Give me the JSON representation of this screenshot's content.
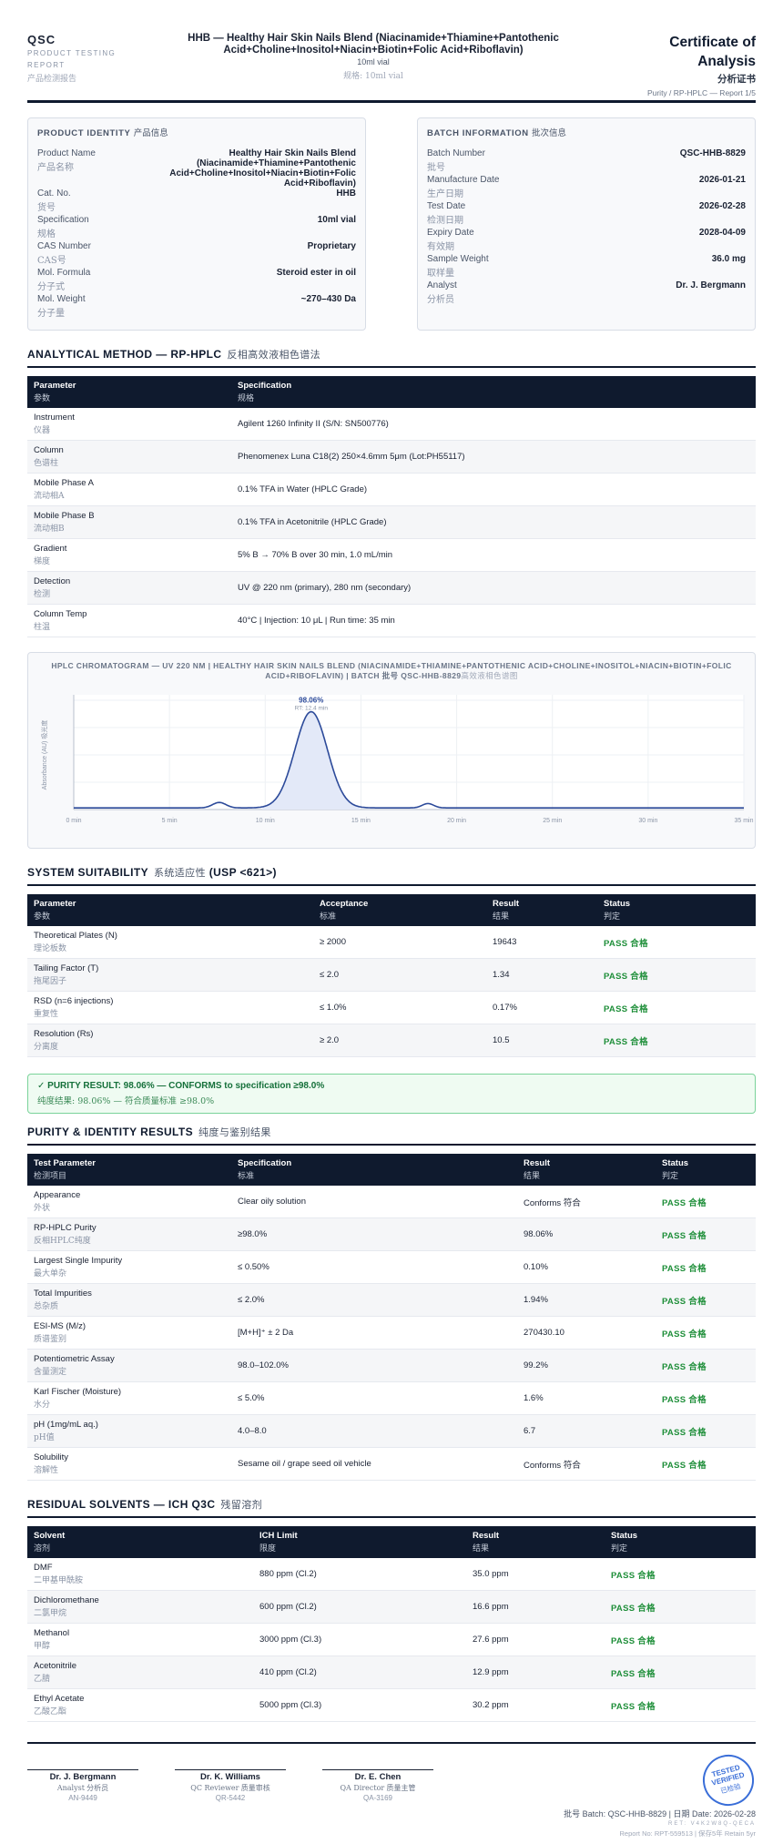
{
  "header": {
    "brand": "QSC",
    "brand_sub_1": "PRODUCT TESTING",
    "brand_sub_2": "REPORT",
    "brand_cn": "产品检测报告",
    "product_title": "HHB — Healthy Hair Skin Nails Blend (Niacinamide+Thiamine+Pantothenic Acid+Choline+Inositol+Niacin+Biotin+Folic Acid+Riboflavin)",
    "spec": "10ml vial",
    "spec_cn": "规格:  10ml vial",
    "coa_title_1": "Certificate of",
    "coa_title_2": "Analysis",
    "coa_cn": "分析证书",
    "report_label": "Purity / RP-HPLC — Report 1/5"
  },
  "product_identity": {
    "title": "PRODUCT IDENTITY",
    "title_cn": "产品信息",
    "rows": [
      {
        "label": "Product Name",
        "label_cn": "产品名称",
        "value": "Healthy Hair Skin Nails Blend (Niacinamide+Thiamine+Pantothenic Acid+Choline+Inositol+Niacin+Biotin+Folic Acid+Riboflavin)"
      },
      {
        "label": "Cat. No.",
        "label_cn": "货号",
        "value": "HHB"
      },
      {
        "label": "Specification",
        "label_cn": "规格",
        "value": "10ml vial"
      },
      {
        "label": "CAS Number",
        "label_cn": "CAS号",
        "value": "Proprietary"
      },
      {
        "label": "Mol. Formula",
        "label_cn": "分子式",
        "value": "Steroid ester in oil"
      },
      {
        "label": "Mol. Weight",
        "label_cn": "分子量",
        "value": "~270–430 Da"
      }
    ]
  },
  "batch_info": {
    "title": "BATCH INFORMATION",
    "title_cn": "批次信息",
    "rows": [
      {
        "label": "Batch Number",
        "label_cn": "批号",
        "value": "QSC-HHB-8829"
      },
      {
        "label": "Manufacture Date",
        "label_cn": "生产日期",
        "value": "2026-01-21"
      },
      {
        "label": "Test Date",
        "label_cn": "检测日期",
        "value": "2026-02-28"
      },
      {
        "label": "Expiry Date",
        "label_cn": "有效期",
        "value": "2028-04-09"
      },
      {
        "label": "Sample Weight",
        "label_cn": "取样量",
        "value": "36.0 mg"
      },
      {
        "label": "Analyst",
        "label_cn": "分析员",
        "value": "Dr. J. Bergmann"
      }
    ]
  },
  "method": {
    "title": "ANALYTICAL METHOD — RP-HPLC",
    "title_cn": "反相高效液相色谱法",
    "headers": [
      {
        "en": "Parameter",
        "cn": "参数"
      },
      {
        "en": "Specification",
        "cn": "规格"
      }
    ],
    "rows": [
      {
        "p": "Instrument",
        "p_cn": "仪器",
        "s": "Agilent 1260 Infinity II (S/N: SN500776)"
      },
      {
        "p": "Column",
        "p_cn": "色谱柱",
        "s": "Phenomenex Luna C18(2) 250×4.6mm 5μm (Lot:PH55117)"
      },
      {
        "p": "Mobile Phase A",
        "p_cn": "流动相A",
        "s": "0.1% TFA in Water (HPLC Grade)"
      },
      {
        "p": "Mobile Phase B",
        "p_cn": "流动相B",
        "s": "0.1% TFA in Acetonitrile (HPLC Grade)"
      },
      {
        "p": "Gradient",
        "p_cn": "梯度",
        "s": "5% B → 70% B over 30 min, 1.0 mL/min"
      },
      {
        "p": "Detection",
        "p_cn": "检测",
        "s": "UV @ 220 nm (primary), 280 nm (secondary)"
      },
      {
        "p": "Column Temp",
        "p_cn": "柱温",
        "s": "40°C | Injection: 10 μL | Run time: 35 min"
      }
    ]
  },
  "chart_data": {
    "type": "line",
    "title": "HPLC CHROMATOGRAM — UV 220 NM | HEALTHY HAIR SKIN NAILS BLEND (NIACINAMIDE+THIAMINE+PANTOTHENIC ACID+CHOLINE+INOSITOL+NIACIN+BIOTIN+FOLIC ACID+RIBOFLAVIN) | BATCH 批号 QSC-HHB-8829",
    "title_cn": "高效液相色谱图",
    "ylabel": "Absorbance (AU) 吸光度",
    "xlabel": "",
    "xlim": [
      0,
      35
    ],
    "ylim": [
      0,
      1
    ],
    "x_ticks": [
      "0 min",
      "5 min",
      "10 min",
      "15 min",
      "20 min",
      "25 min",
      "30 min",
      "35 min"
    ],
    "peaks": [
      {
        "rt": 7.6,
        "height": 0.05,
        "width": 0.35
      },
      {
        "rt": 12.4,
        "height": 0.88,
        "width": 0.85
      },
      {
        "rt": 18.5,
        "height": 0.04,
        "width": 0.3
      }
    ],
    "baseline": 0.015,
    "main_peak_label": "98.06%",
    "main_peak_rt_label": "RT: 12.4 min",
    "grid": true,
    "line_color": "#2c4a9a",
    "fill_color": "#e3e9f8"
  },
  "suitability": {
    "title": "SYSTEM SUITABILITY",
    "title_cn": "系统适应性",
    "title_suffix": "(USP <621>)",
    "headers": [
      {
        "en": "Parameter",
        "cn": "参数"
      },
      {
        "en": "Acceptance",
        "cn": "标准"
      },
      {
        "en": "Result",
        "cn": "结果"
      },
      {
        "en": "Status",
        "cn": "判定"
      }
    ],
    "rows": [
      {
        "p": "Theoretical Plates (N)",
        "p_cn": "理论板数",
        "a": "≥ 2000",
        "r": "19643",
        "s": "PASS 合格"
      },
      {
        "p": "Tailing Factor (T)",
        "p_cn": "拖尾因子",
        "a": "≤ 2.0",
        "r": "1.34",
        "s": "PASS 合格"
      },
      {
        "p": "RSD (n=6 injections)",
        "p_cn": "重复性",
        "a": "≤ 1.0%",
        "r": "0.17%",
        "s": "PASS 合格"
      },
      {
        "p": "Resolution (Rs)",
        "p_cn": "分离度",
        "a": "≥ 2.0",
        "r": "10.5",
        "s": "PASS 合格"
      }
    ]
  },
  "purity_banner": {
    "text": "✓ PURITY RESULT: 98.06% — CONFORMS to specification ≥98.0%",
    "text_cn": "纯度结果:  98.06% — 符合质量标准 ≥98.0%"
  },
  "purity": {
    "title": "PURITY & IDENTITY RESULTS",
    "title_cn": "纯度与鉴别结果",
    "headers": [
      {
        "en": "Test Parameter",
        "cn": "检测项目"
      },
      {
        "en": "Specification",
        "cn": "标准"
      },
      {
        "en": "Result",
        "cn": "结果"
      },
      {
        "en": "Status",
        "cn": "判定"
      }
    ],
    "rows": [
      {
        "p": "Appearance",
        "p_cn": "外状",
        "sp": "Clear oily solution",
        "r": "Conforms 符合",
        "s": "PASS 合格"
      },
      {
        "p": "RP-HPLC Purity",
        "p_cn": "反相HPLC纯度",
        "sp": "≥98.0%",
        "r": "98.06%",
        "s": "PASS 合格"
      },
      {
        "p": "Largest Single Impurity",
        "p_cn": "最大单杂",
        "sp": "≤ 0.50%",
        "r": "0.10%",
        "s": "PASS 合格"
      },
      {
        "p": "Total Impurities",
        "p_cn": "总杂质",
        "sp": "≤ 2.0%",
        "r": "1.94%",
        "s": "PASS 合格"
      },
      {
        "p": "ESI-MS (M/z)",
        "p_cn": "质谱鉴别",
        "sp": "[M+H]⁺ ± 2 Da",
        "r": "270430.10",
        "s": "PASS 合格"
      },
      {
        "p": "Potentiometric Assay",
        "p_cn": "含量测定",
        "sp": "98.0–102.0%",
        "r": "99.2%",
        "s": "PASS 合格"
      },
      {
        "p": "Karl Fischer (Moisture)",
        "p_cn": "水分",
        "sp": "≤ 5.0%",
        "r": "1.6%",
        "s": "PASS 合格"
      },
      {
        "p": "pH (1mg/mL aq.)",
        "p_cn": "pH值",
        "sp": "4.0–8.0",
        "r": "6.7",
        "s": "PASS 合格"
      },
      {
        "p": "Solubility",
        "p_cn": "溶解性",
        "sp": "Sesame oil / grape seed oil vehicle",
        "r": "Conforms 符合",
        "s": "PASS 合格"
      }
    ]
  },
  "solvents": {
    "title": "RESIDUAL SOLVENTS — ICH Q3C",
    "title_cn": "残留溶剂",
    "headers": [
      {
        "en": "Solvent",
        "cn": "溶剂"
      },
      {
        "en": "ICH Limit",
        "cn": "限度"
      },
      {
        "en": "Result",
        "cn": "结果"
      },
      {
        "en": "Status",
        "cn": "判定"
      }
    ],
    "rows": [
      {
        "p": "DMF",
        "p_cn": "二甲基甲酰胺",
        "l": "880 ppm (Cl.2)",
        "r": "35.0 ppm",
        "s": "PASS 合格"
      },
      {
        "p": "Dichloromethane",
        "p_cn": "二氯甲烷",
        "l": "600 ppm (Cl.2)",
        "r": "16.6 ppm",
        "s": "PASS 合格"
      },
      {
        "p": "Methanol",
        "p_cn": "甲醇",
        "l": "3000 ppm (Cl.3)",
        "r": "27.6 ppm",
        "s": "PASS 合格"
      },
      {
        "p": "Acetonitrile",
        "p_cn": "乙腈",
        "l": "410 ppm (Cl.2)",
        "r": "12.9 ppm",
        "s": "PASS 合格"
      },
      {
        "p": "Ethyl Acetate",
        "p_cn": "乙酸乙酯",
        "l": "5000 ppm (Cl.3)",
        "r": "30.2 ppm",
        "s": "PASS 合格"
      }
    ]
  },
  "signatures": [
    {
      "name": "Dr. J. Bergmann",
      "role": "Analyst",
      "role_cn": "分析员",
      "id": "AN-9449"
    },
    {
      "name": "Dr. K. Williams",
      "role": "QC Reviewer",
      "role_cn": "质量审核",
      "id": "QR-5442"
    },
    {
      "name": "Dr. E. Chen",
      "role": "QA Director",
      "role_cn": "质量主管",
      "id": "QA-3169"
    }
  ],
  "stamp": {
    "line1": "TESTED",
    "line2": "VERIFIED",
    "line_cn": "已检验"
  },
  "footer": {
    "batch_date": "批号 Batch: QSC-HHB-8829 | 日期 Date: 2026-02-28",
    "code": "RET: V4K2W8Q-QECA",
    "report_no": "Report No: RPT-559513 | 保存5年 Retain 5yr"
  },
  "colors": {
    "navy": "#0f1a2e",
    "pass": "#1f8f3a",
    "stamp": "#3a6ed8"
  }
}
